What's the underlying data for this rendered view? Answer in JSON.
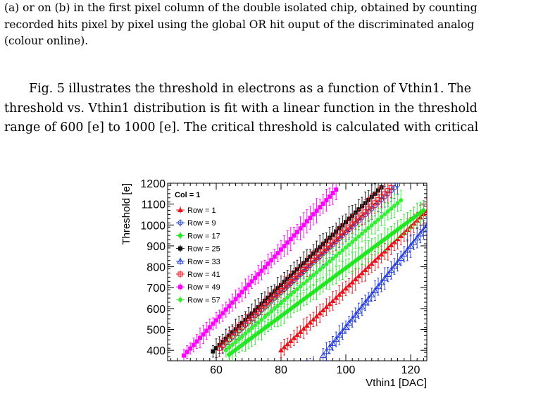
{
  "caption": {
    "lines": [
      "(a) or on (b) in the first pixel column of the double isolated chip, obtained by counting",
      "recorded hits pixel by pixel using the global OR hit ouput of the discriminated analog",
      "(colour online)."
    ]
  },
  "paragraph": {
    "lines": [
      "Fig. 5 illustrates the threshold in electrons as a function of Vthin1. The",
      "threshold vs. Vthin1 distribution is fit with a linear function in the threshold",
      "range of 600 [e] to 1000 [e]. The critical threshold is calculated with critical"
    ]
  },
  "chart_data": {
    "type": "scatter",
    "xlabel": "Vthin1 [DAC]",
    "ylabel": "Threshold [e]",
    "xlim": [
      45,
      125
    ],
    "ylim": [
      350,
      1200
    ],
    "x_ticks": [
      60,
      80,
      100,
      120
    ],
    "y_ticks": [
      400,
      500,
      600,
      700,
      800,
      900,
      1000,
      1100,
      1200
    ],
    "legend_title": "Col = 1",
    "legend_position": "top-left",
    "grid": false,
    "series": [
      {
        "name": "Row = 1",
        "color": "#e8141c",
        "marker": "triangle-filled",
        "x_start": 80,
        "x_end": 125,
        "y_start": 400,
        "slope": 14.8,
        "fit": [
          [
            98,
            671
          ],
          [
            125,
            1071
          ]
        ]
      },
      {
        "name": "Row = 9",
        "color": "#1f3dcc",
        "marker": "circle-open",
        "x_start": 62,
        "x_end": 116,
        "y_start": 420,
        "slope": 14.3,
        "fit": [
          [
            75,
            607
          ],
          [
            105,
            1035
          ]
        ]
      },
      {
        "name": "Row = 17",
        "color": "#1fe61f",
        "marker": "diamond-filled",
        "x_start": 64,
        "x_end": 124,
        "y_start": 380,
        "slope": 11.5,
        "fit": [
          [
            82,
            587
          ],
          [
            124,
            1070
          ]
        ]
      },
      {
        "name": "Row = 25",
        "color": "#111111",
        "marker": "square-filled",
        "x_start": 59,
        "x_end": 111,
        "y_start": 395,
        "slope": 15.1,
        "fit": [
          [
            74,
            622
          ],
          [
            104,
            1076
          ]
        ]
      },
      {
        "name": "Row = 33",
        "color": "#2038d8",
        "marker": "triangle-open",
        "x_start": 93,
        "x_end": 125,
        "y_start": 375,
        "slope": 19.4,
        "fit": [
          [
            95,
            414
          ],
          [
            125,
            1000
          ]
        ]
      },
      {
        "name": "Row = 41",
        "color": "#e8141c",
        "marker": "square-open",
        "x_start": 61,
        "x_end": 114,
        "y_start": 410,
        "slope": 14.5,
        "fit": [
          [
            74,
            598
          ],
          [
            106,
            1062
          ]
        ]
      },
      {
        "name": "Row = 49",
        "color": "#ff00ff",
        "marker": "square-filled",
        "x_start": 50,
        "x_end": 97,
        "y_start": 375,
        "slope": 16.9,
        "fit": null
      },
      {
        "name": "Row = 57",
        "color": "#33ee33",
        "marker": "circle-filled",
        "x_start": 63,
        "x_end": 117,
        "y_start": 400,
        "slope": 13.3,
        "fit": [
          [
            76,
            573
          ],
          [
            117,
            1119
          ]
        ]
      }
    ]
  }
}
